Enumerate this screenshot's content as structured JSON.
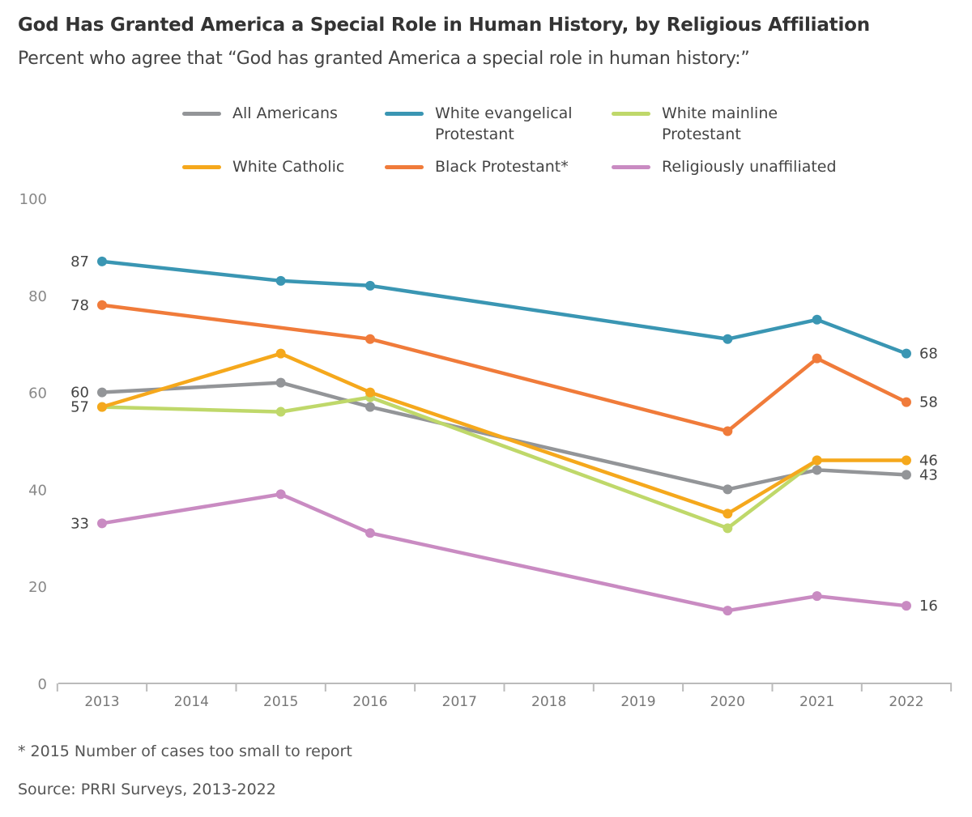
{
  "chart_data": {
    "type": "line",
    "title": "God Has Granted America a Special Role in Human History, by Religious Affiliation",
    "subtitle": "Percent who agree that “God has granted America a special role in human history:”",
    "x": [
      2013,
      2014,
      2015,
      2016,
      2017,
      2018,
      2019,
      2020,
      2021,
      2022
    ],
    "ylim": [
      0,
      100
    ],
    "yticks": [
      0,
      20,
      40,
      60,
      80,
      100
    ],
    "grid": false,
    "legend_placement": "top",
    "series": [
      {
        "name": "All Americans",
        "color": "#939598",
        "points": [
          [
            2013,
            60
          ],
          [
            2015,
            62
          ],
          [
            2016,
            57
          ],
          [
            2020,
            40
          ],
          [
            2021,
            44
          ],
          [
            2022,
            43
          ]
        ]
      },
      {
        "name": "White evangelical Protestant",
        "color": "#3a96b3",
        "points": [
          [
            2013,
            87
          ],
          [
            2015,
            83
          ],
          [
            2016,
            82
          ],
          [
            2020,
            71
          ],
          [
            2021,
            75
          ],
          [
            2022,
            68
          ]
        ]
      },
      {
        "name": "White mainline Protestant",
        "color": "#bfd86a",
        "points": [
          [
            2013,
            57
          ],
          [
            2015,
            56
          ],
          [
            2016,
            59
          ],
          [
            2020,
            32
          ],
          [
            2021,
            46
          ]
        ]
      },
      {
        "name": "White Catholic",
        "color": "#f5a81c",
        "points": [
          [
            2013,
            57
          ],
          [
            2015,
            68
          ],
          [
            2016,
            60
          ],
          [
            2020,
            35
          ],
          [
            2021,
            46
          ],
          [
            2022,
            46
          ]
        ]
      },
      {
        "name": "Black Protestant*",
        "color": "#f07b3a",
        "points": [
          [
            2013,
            78
          ],
          [
            2016,
            71
          ],
          [
            2020,
            52
          ],
          [
            2021,
            67
          ],
          [
            2022,
            58
          ]
        ]
      },
      {
        "name": "Religiously unaffiliated",
        "color": "#c98bc2",
        "points": [
          [
            2013,
            33
          ],
          [
            2015,
            39
          ],
          [
            2016,
            31
          ],
          [
            2020,
            15
          ],
          [
            2021,
            18
          ],
          [
            2022,
            16
          ]
        ]
      }
    ],
    "data_labels": [
      {
        "x": 2013,
        "y": 87,
        "text": "87",
        "side": "left"
      },
      {
        "x": 2013,
        "y": 78,
        "text": "78",
        "side": "left"
      },
      {
        "x": 2013,
        "y": 60,
        "text": "60",
        "side": "left"
      },
      {
        "x": 2013,
        "y": 57,
        "text": "57",
        "side": "left"
      },
      {
        "x": 2013,
        "y": 33,
        "text": "33",
        "side": "left"
      },
      {
        "x": 2022,
        "y": 68,
        "text": "68",
        "side": "right"
      },
      {
        "x": 2022,
        "y": 58,
        "text": "58",
        "side": "right"
      },
      {
        "x": 2022,
        "y": 46,
        "text": "46",
        "side": "right"
      },
      {
        "x": 2022,
        "y": 43,
        "text": "43",
        "side": "right"
      },
      {
        "x": 2022,
        "y": 16,
        "text": "16",
        "side": "right"
      }
    ]
  },
  "legend": [
    {
      "line1": "All Americans",
      "line2": ""
    },
    {
      "line1": "White evangelical",
      "line2": "Protestant"
    },
    {
      "line1": "White mainline",
      "line2": "Protestant"
    },
    {
      "line1": "White Catholic",
      "line2": ""
    },
    {
      "line1": "Black Protestant*",
      "line2": ""
    },
    {
      "line1": "Religiously unaffiliated",
      "line2": ""
    }
  ],
  "footnote": "* 2015 Number of cases too small to report",
  "source": "Source: PRRI Surveys, 2013-2022"
}
